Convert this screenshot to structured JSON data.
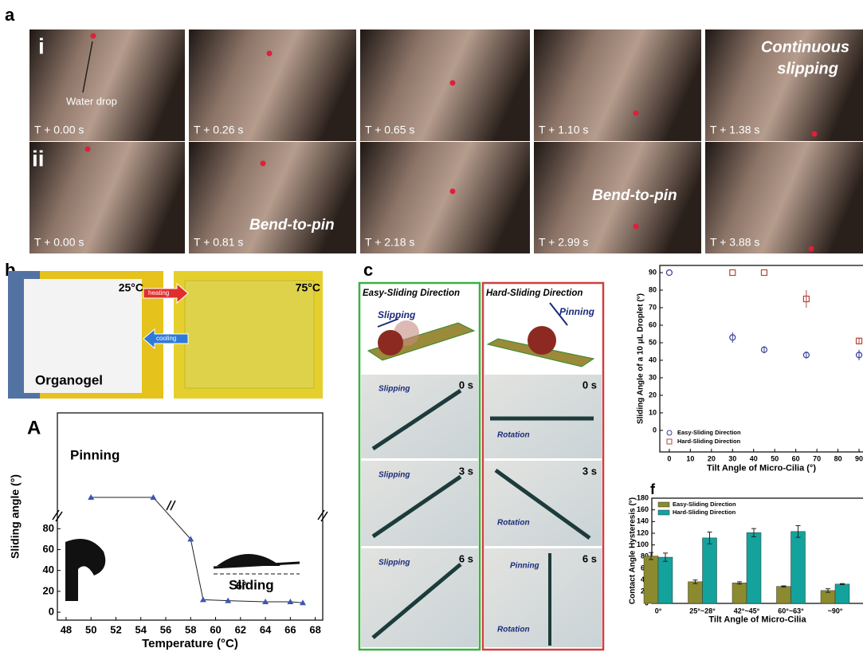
{
  "panel_a": {
    "label": "a",
    "rows": [
      {
        "label": "i",
        "captions": [
          "T + 0.00 s",
          "T + 0.26 s",
          "T + 0.65 s",
          "T + 1.10 s",
          "T + 1.38 s"
        ]
      },
      {
        "label": "ii",
        "captions": [
          "T + 0.00 s",
          "T + 0.81 s",
          "T + 2.18 s",
          "T + 2.99 s",
          "T + 3.88 s"
        ]
      }
    ],
    "water_drop": "Water drop",
    "continuous_slipping": [
      "Continuous",
      "slipping"
    ],
    "bend_to_pin": [
      "Bend-to-pin",
      "Bend-to-pin"
    ]
  },
  "panel_b": {
    "label": "b",
    "temp_cold": "25°C",
    "temp_hot": "75°C",
    "heating": "heating",
    "cooling": "cooling",
    "material": "Organogel",
    "inset_label": "A"
  },
  "panel_c": {
    "label": "c",
    "easy_title": "Easy-Sliding Direction",
    "hard_title": "Hard-Sliding Direction",
    "easy_arrow": "Slipping",
    "hard_arrow": "Pinning",
    "easy_frames": [
      {
        "time": "0 s",
        "note": "Slipping"
      },
      {
        "time": "3 s",
        "note": "Slipping"
      },
      {
        "time": "6 s",
        "note": "Slipping"
      }
    ],
    "hard_frames": [
      {
        "time": "0 s",
        "note": "Rotation"
      },
      {
        "time": "3 s",
        "note": "Rotation"
      },
      {
        "time": "6 s",
        "note": "Rotation",
        "extra": "Pinning"
      }
    ]
  },
  "panel_f": {
    "label": "f"
  },
  "chart_data": [
    {
      "type": "line",
      "x": [
        50,
        55,
        58,
        59,
        61,
        64,
        66,
        67
      ],
      "values": [
        110,
        110,
        70,
        12,
        11,
        10,
        10,
        9
      ],
      "color": "#3a55b4",
      "xlim": [
        47.3,
        68.6
      ],
      "ylim": [
        -7.6,
        191
      ],
      "xticks": [
        48,
        50,
        52,
        54,
        56,
        58,
        60,
        62,
        64,
        66,
        68
      ],
      "yticks": [
        0,
        20,
        40,
        60,
        80
      ],
      "xlabel": "Temperature (°C)",
      "ylabel": "Sliding angle (°)",
      "annotations": [
        "Pinning",
        "Sliding",
        "6°"
      ]
    },
    {
      "type": "scatter",
      "xlim": [
        -4.5,
        98.3
      ],
      "ylim": [
        -12.3,
        94.1
      ],
      "xticks": [
        0,
        10,
        20,
        30,
        40,
        50,
        60,
        70,
        80,
        90
      ],
      "yticks": [
        0,
        10,
        20,
        30,
        40,
        50,
        60,
        70,
        80,
        90
      ],
      "xlabel": "Tilt Angle of Micro-Cilia (°)",
      "ylabel": "Sliding Angle of a 10 μL Droplet (°)",
      "series": [
        {
          "name": "Easy-Sliding Direction",
          "color": "#3b3b9e",
          "marker": "circle",
          "x": [
            0,
            30,
            45,
            65,
            90
          ],
          "values": [
            90,
            53,
            46,
            43,
            43
          ],
          "errors": [
            0,
            3,
            2,
            2,
            3
          ]
        },
        {
          "name": "Hard-Sliding Direction",
          "color": "#b5473a",
          "marker": "square",
          "x": [
            30,
            45,
            65,
            90
          ],
          "values": [
            90,
            90,
            75,
            51
          ],
          "errors": [
            0,
            0,
            5,
            2
          ]
        }
      ]
    },
    {
      "type": "bar",
      "categories": [
        "0°",
        "25°~28°",
        "42°~45°",
        "60°~63°",
        "~90°"
      ],
      "ylim": [
        0,
        180
      ],
      "yticks": [
        0,
        20,
        40,
        60,
        80,
        100,
        120,
        140,
        160,
        180
      ],
      "xlabel": "Tilt Angle of Micro-Cilia",
      "ylabel": "Contact Angle Hysteresis (°)",
      "series": [
        {
          "name": "Easy-Sliding Direction",
          "color": "#8b8a2e",
          "values": [
            81,
            37,
            35,
            29,
            22
          ],
          "errors": [
            6,
            3,
            2,
            1,
            3
          ]
        },
        {
          "name": "Hard-Sliding Direction",
          "color": "#14a29c",
          "values": [
            79,
            112,
            121,
            123,
            33
          ],
          "errors": [
            7,
            10,
            7,
            10,
            1
          ]
        }
      ]
    }
  ]
}
